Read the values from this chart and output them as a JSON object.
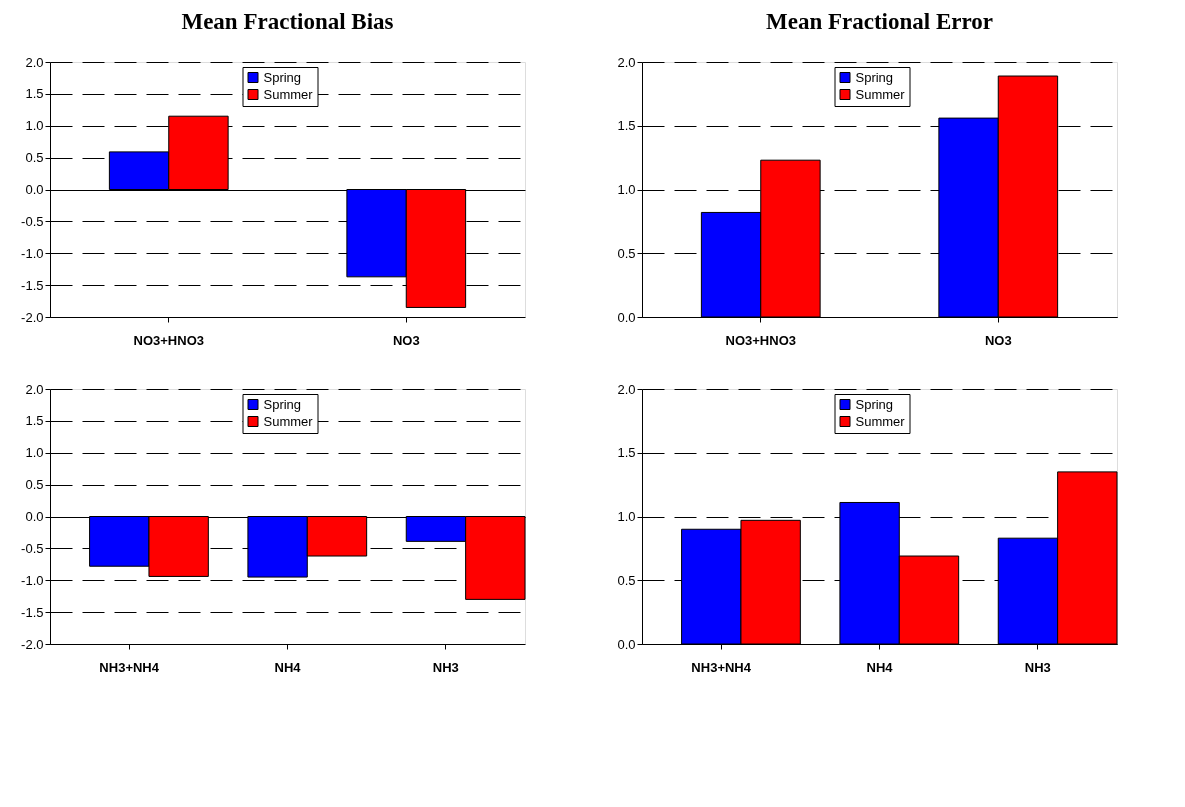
{
  "chart_data": [
    {
      "type": "bar",
      "title": "Mean Fractional Bias",
      "categories": [
        "NO3+HNO3",
        "NO3"
      ],
      "series": [
        {
          "name": "Spring",
          "color": "#0000ff",
          "values": [
            0.59,
            -1.37
          ]
        },
        {
          "name": "Summer",
          "color": "#ff0000",
          "values": [
            1.15,
            -1.85
          ]
        }
      ],
      "ylim": [
        -2,
        2
      ],
      "yticks": [
        {
          "value": -2,
          "label": "-2.0"
        },
        {
          "value": -1.5,
          "label": "-1.5"
        },
        {
          "value": -1,
          "label": "-1.0"
        },
        {
          "value": -0.5,
          "label": "-0.5"
        },
        {
          "value": 0,
          "label": "0.0"
        },
        {
          "value": 0.5,
          "label": "0.5"
        },
        {
          "value": 1,
          "label": "1.0"
        },
        {
          "value": 1.5,
          "label": "1.5"
        },
        {
          "value": 2,
          "label": "2.0"
        }
      ],
      "grid": "y",
      "legend": "top"
    },
    {
      "type": "bar",
      "title": "Mean Fractional Error",
      "categories": [
        "NO3+HNO3",
        "NO3"
      ],
      "series": [
        {
          "name": "Spring",
          "color": "#0000ff",
          "values": [
            0.82,
            1.56
          ]
        },
        {
          "name": "Summer",
          "color": "#ff0000",
          "values": [
            1.23,
            1.89
          ]
        }
      ],
      "ylim": [
        0,
        2
      ],
      "yticks": [
        {
          "value": 0,
          "label": "0.0"
        },
        {
          "value": 0.5,
          "label": "0.5"
        },
        {
          "value": 1,
          "label": "1.0"
        },
        {
          "value": 1.5,
          "label": "1.5"
        },
        {
          "value": 2,
          "label": "2.0"
        }
      ],
      "grid": "y",
      "legend": "top"
    },
    {
      "type": "bar",
      "categories": [
        "NH3+NH4",
        "NH4",
        "NH3"
      ],
      "series": [
        {
          "name": "Spring",
          "color": "#0000ff",
          "values": [
            -0.78,
            -0.95,
            -0.39
          ]
        },
        {
          "name": "Summer",
          "color": "#ff0000",
          "values": [
            -0.94,
            -0.62,
            -1.3
          ]
        }
      ],
      "ylim": [
        -2,
        2
      ],
      "yticks": [
        {
          "value": -2,
          "label": "-2.0"
        },
        {
          "value": -1.5,
          "label": "-1.5"
        },
        {
          "value": -1,
          "label": "-1.0"
        },
        {
          "value": -0.5,
          "label": "-0.5"
        },
        {
          "value": 0,
          "label": "0.0"
        },
        {
          "value": 0.5,
          "label": "0.5"
        },
        {
          "value": 1,
          "label": "1.0"
        },
        {
          "value": 1.5,
          "label": "1.5"
        },
        {
          "value": 2,
          "label": "2.0"
        }
      ],
      "grid": "y",
      "legend": "top"
    },
    {
      "type": "bar",
      "categories": [
        "NH3+NH4",
        "NH4",
        "NH3"
      ],
      "series": [
        {
          "name": "Spring",
          "color": "#0000ff",
          "values": [
            0.9,
            1.11,
            0.83
          ]
        },
        {
          "name": "Summer",
          "color": "#ff0000",
          "values": [
            0.97,
            0.69,
            1.35
          ]
        }
      ],
      "ylim": [
        0,
        2
      ],
      "yticks": [
        {
          "value": 0,
          "label": "0.0"
        },
        {
          "value": 0.5,
          "label": "0.5"
        },
        {
          "value": 1,
          "label": "1.0"
        },
        {
          "value": 1.5,
          "label": "1.5"
        },
        {
          "value": 2,
          "label": "2.0"
        }
      ],
      "grid": "y",
      "legend": "top"
    }
  ]
}
